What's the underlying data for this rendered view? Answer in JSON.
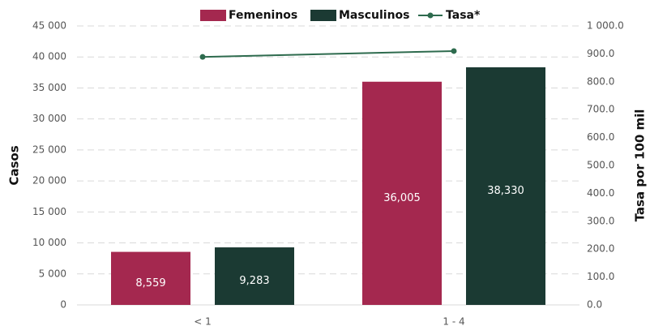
{
  "chart_data": {
    "type": "bar",
    "categories": [
      "< 1",
      "1 - 4"
    ],
    "series": [
      {
        "name": "Femeninos",
        "color": "#a4284f",
        "values": [
          8559,
          36005
        ],
        "value_labels": [
          "8,559",
          "36,005"
        ]
      },
      {
        "name": "Masculinos",
        "color": "#1b3a33",
        "values": [
          9283,
          38330
        ],
        "value_labels": [
          "9,283",
          "38,330"
        ]
      },
      {
        "name": "Tasa*",
        "color": "#2e6b4e",
        "type": "line",
        "axis": "y2",
        "values": [
          889,
          910
        ]
      }
    ],
    "ylabel": "Casos",
    "y2label": "Tasa por 100 mil",
    "ylim": [
      0,
      45000
    ],
    "yticks": [
      0,
      {
        "value": 5000,
        "label": "5 000"
      },
      {
        "value": 10000,
        "label": "10 000"
      },
      {
        "value": 15000,
        "label": "15 000"
      },
      {
        "value": 20000,
        "label": "20 000"
      },
      {
        "value": 25000,
        "label": "25 000"
      },
      {
        "value": 30000,
        "label": "30 000"
      },
      {
        "value": 35000,
        "label": "35 000"
      },
      {
        "value": 40000,
        "label": "40 000"
      },
      {
        "value": 45000,
        "label": "45 000"
      }
    ],
    "y2lim": [
      0,
      1000
    ],
    "y2ticks": [
      {
        "value": 0,
        "label": "0.0"
      },
      {
        "value": 100,
        "label": "100.0"
      },
      {
        "value": 200,
        "label": "200.0"
      },
      {
        "value": 300,
        "label": "300.0"
      },
      {
        "value": 400,
        "label": "400.0"
      },
      {
        "value": 500,
        "label": "500.0"
      },
      {
        "value": 600,
        "label": "600.0"
      },
      {
        "value": 700,
        "label": "700.0"
      },
      {
        "value": 800,
        "label": "800.0"
      },
      {
        "value": 900,
        "label": "900.0"
      },
      {
        "value": 1000,
        "label": "1 000.0"
      }
    ],
    "grid": true,
    "legend": "top"
  }
}
